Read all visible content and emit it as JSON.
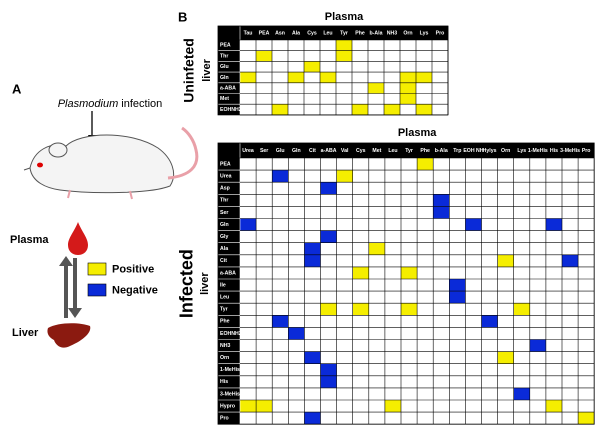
{
  "panel_a": {
    "label": "A",
    "infection_italic": "Plasmodium",
    "infection_rest": " infection",
    "plasma": "Plasma",
    "liver": "Liver",
    "legend": [
      {
        "label": "Positive",
        "color": "#f5ee00"
      },
      {
        "label": "Negative",
        "color": "#0a2ad8"
      }
    ]
  },
  "panel_b": {
    "label": "B",
    "uninfected": {
      "group": "Uninfeted",
      "tissue": "liver",
      "title": "Plasma",
      "columns": [
        "Tau",
        "PEA",
        "Asn",
        "Ala",
        "Cys",
        "Leu",
        "Tyr",
        "Phe",
        "b-Ala",
        "NH3",
        "Orn",
        "Lys",
        "Pro"
      ],
      "rows": [
        "PEA",
        "Thr",
        "Glu",
        "Gln",
        "a-ABA",
        "Met",
        "EOHNH2"
      ],
      "cells": [
        [
          0,
          6,
          0
        ],
        [
          1,
          1,
          0
        ],
        [
          1,
          6,
          0
        ],
        [
          2,
          4,
          0
        ],
        [
          3,
          0,
          0
        ],
        [
          3,
          3,
          0
        ],
        [
          3,
          5,
          0
        ],
        [
          3,
          10,
          0
        ],
        [
          3,
          11,
          0
        ],
        [
          4,
          8,
          0
        ],
        [
          4,
          10,
          0
        ],
        [
          5,
          10,
          0
        ],
        [
          6,
          2,
          0
        ],
        [
          6,
          7,
          0
        ],
        [
          6,
          9,
          0
        ],
        [
          6,
          11,
          0
        ]
      ]
    },
    "infected": {
      "group": "Infected",
      "tissue": "liver",
      "title": "Plasma",
      "columns": [
        "Urea",
        "Ser",
        "Glu",
        "Gln",
        "Cit",
        "a-ABA",
        "Val",
        "Cys",
        "Met",
        "Leu",
        "Tyr",
        "Phe",
        "b-Ala",
        "Trp",
        "EOH NH",
        "Hylys",
        "Orn",
        "Lys",
        "1-MeHis",
        "His",
        "3-MeHis",
        "Pro"
      ],
      "rows": [
        "PEA",
        "Urea",
        "Asp",
        "Thr",
        "Ser",
        "Gln",
        "Gly",
        "Ala",
        "Cit",
        "a-ABA",
        "Ile",
        "Leu",
        "Tyr",
        "Phe",
        "EOHNH2",
        "NH3",
        "Orn",
        "1-MeHis",
        "His",
        "3-MeHis",
        "Hypro",
        "Pro"
      ],
      "cells": [
        [
          0,
          11,
          0
        ],
        [
          1,
          2,
          1
        ],
        [
          1,
          6,
          0
        ],
        [
          2,
          5,
          1
        ],
        [
          3,
          12,
          1
        ],
        [
          4,
          12,
          1
        ],
        [
          5,
          0,
          1
        ],
        [
          5,
          14,
          1
        ],
        [
          5,
          19,
          1
        ],
        [
          6,
          5,
          1
        ],
        [
          7,
          4,
          1
        ],
        [
          7,
          8,
          0
        ],
        [
          8,
          4,
          1
        ],
        [
          8,
          16,
          0
        ],
        [
          8,
          20,
          1
        ],
        [
          9,
          7,
          0
        ],
        [
          9,
          10,
          0
        ],
        [
          10,
          13,
          1
        ],
        [
          11,
          13,
          1
        ],
        [
          12,
          5,
          0
        ],
        [
          12,
          7,
          0
        ],
        [
          12,
          10,
          0
        ],
        [
          12,
          17,
          0
        ],
        [
          13,
          2,
          1
        ],
        [
          13,
          15,
          1
        ],
        [
          14,
          3,
          1
        ],
        [
          15,
          18,
          1
        ],
        [
          16,
          4,
          1
        ],
        [
          16,
          16,
          0
        ],
        [
          17,
          5,
          1
        ],
        [
          18,
          5,
          1
        ],
        [
          19,
          17,
          1
        ],
        [
          20,
          0,
          0
        ],
        [
          20,
          1,
          0
        ],
        [
          20,
          9,
          0
        ],
        [
          20,
          19,
          0
        ],
        [
          21,
          4,
          1
        ],
        [
          21,
          21,
          0
        ]
      ]
    }
  }
}
